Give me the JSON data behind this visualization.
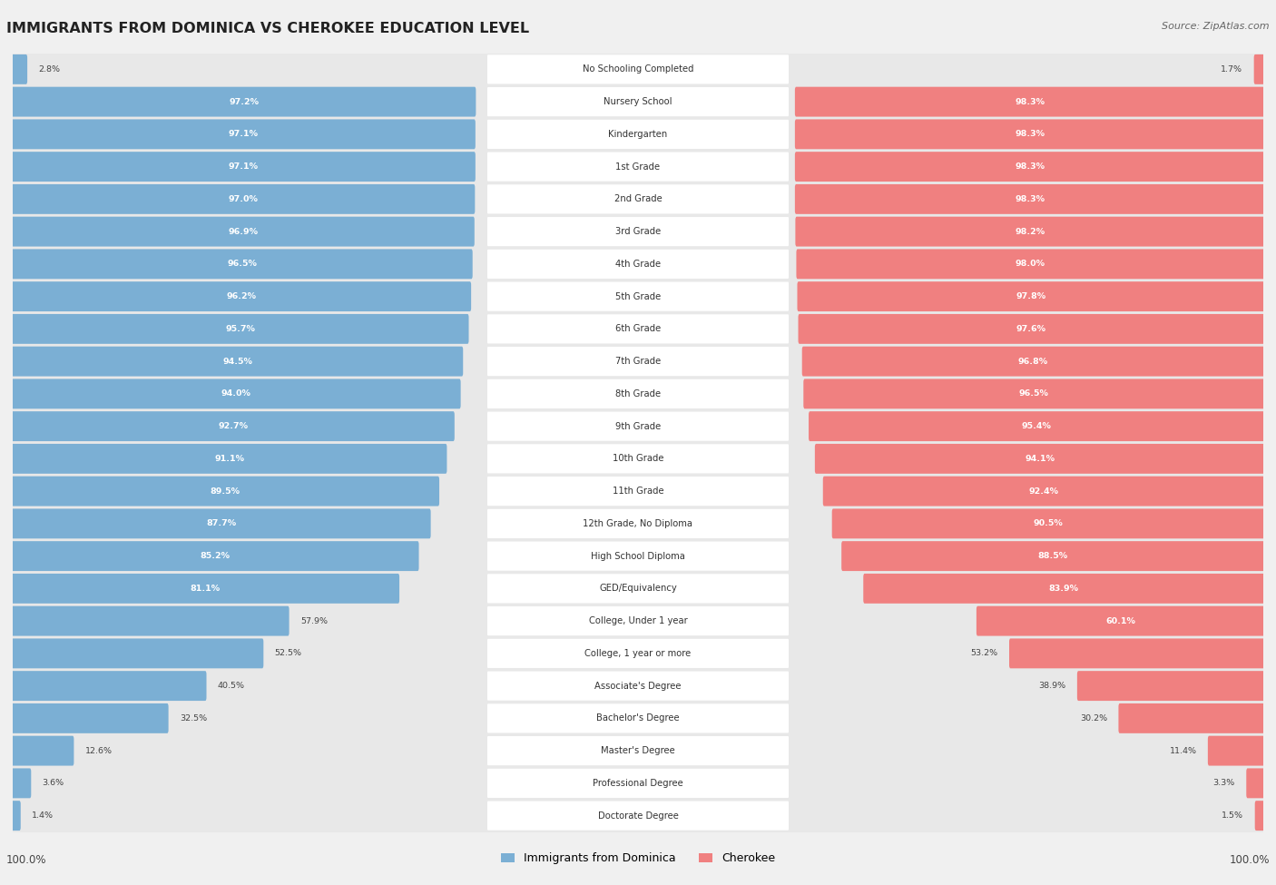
{
  "title": "IMMIGRANTS FROM DOMINICA VS CHEROKEE EDUCATION LEVEL",
  "source": "Source: ZipAtlas.com",
  "categories": [
    "No Schooling Completed",
    "Nursery School",
    "Kindergarten",
    "1st Grade",
    "2nd Grade",
    "3rd Grade",
    "4th Grade",
    "5th Grade",
    "6th Grade",
    "7th Grade",
    "8th Grade",
    "9th Grade",
    "10th Grade",
    "11th Grade",
    "12th Grade, No Diploma",
    "High School Diploma",
    "GED/Equivalency",
    "College, Under 1 year",
    "College, 1 year or more",
    "Associate's Degree",
    "Bachelor's Degree",
    "Master's Degree",
    "Professional Degree",
    "Doctorate Degree"
  ],
  "dominica_values": [
    2.8,
    97.2,
    97.1,
    97.1,
    97.0,
    96.9,
    96.5,
    96.2,
    95.7,
    94.5,
    94.0,
    92.7,
    91.1,
    89.5,
    87.7,
    85.2,
    81.1,
    57.9,
    52.5,
    40.5,
    32.5,
    12.6,
    3.6,
    1.4
  ],
  "cherokee_values": [
    1.7,
    98.3,
    98.3,
    98.3,
    98.3,
    98.2,
    98.0,
    97.8,
    97.6,
    96.8,
    96.5,
    95.4,
    94.1,
    92.4,
    90.5,
    88.5,
    83.9,
    60.1,
    53.2,
    38.9,
    30.2,
    11.4,
    3.3,
    1.5
  ],
  "dominica_color": "#7bafd4",
  "cherokee_color": "#f08080",
  "background_color": "#f0f0f0",
  "bar_row_bg": "#e8e8e8",
  "bar_center_bg": "#ffffff",
  "axis_label_100": "100.0%",
  "legend_dominica": "Immigrants from Dominica",
  "legend_cherokee": "Cherokee",
  "inner_label_color": "#ffffff",
  "outer_label_color": "#444444"
}
